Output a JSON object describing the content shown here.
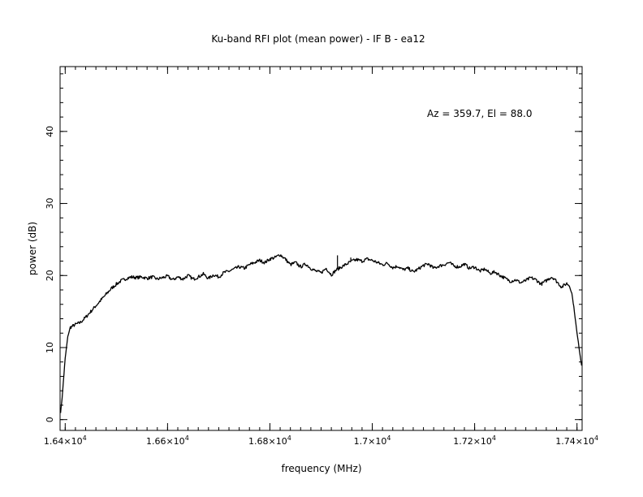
{
  "chart_data": {
    "type": "line",
    "title": "Ku-band RFI plot (mean power) - IF B - ea12",
    "xlabel": "frequency (MHz)",
    "ylabel": "power (dB)",
    "annotation": "Az = 359.7, El = 88.0",
    "xlim": [
      16390,
      17410
    ],
    "ylim": [
      -1.5,
      49
    ],
    "x_ticks": [
      {
        "value": 16400,
        "mantissa": "1.64",
        "exp": "4"
      },
      {
        "value": 16600,
        "mantissa": "1.66",
        "exp": "4"
      },
      {
        "value": 16800,
        "mantissa": "1.68",
        "exp": "4"
      },
      {
        "value": 17000,
        "mantissa": "1.7",
        "exp": "4"
      },
      {
        "value": 17200,
        "mantissa": "1.72",
        "exp": "4"
      },
      {
        "value": 17400,
        "mantissa": "1.74",
        "exp": "4"
      }
    ],
    "y_ticks": [
      {
        "value": 0,
        "label": "0"
      },
      {
        "value": 10,
        "label": "10"
      },
      {
        "value": 20,
        "label": "20"
      },
      {
        "value": 30,
        "label": "30"
      },
      {
        "value": 40,
        "label": "40"
      }
    ],
    "x_minor_step": 20,
    "y_minor_step": 2,
    "grid": false,
    "line_color": "#000000",
    "series": [
      {
        "x": [
          16391,
          16394,
          16400,
          16405,
          16410,
          16420,
          16430,
          16440,
          16450,
          16460,
          16470,
          16480,
          16490,
          16500,
          16510,
          16520,
          16530,
          16540,
          16550,
          16560,
          16570,
          16580,
          16590,
          16600,
          16610,
          16620,
          16630,
          16640,
          16650,
          16660,
          16670,
          16680,
          16690,
          16700,
          16710,
          16720,
          16730,
          16740,
          16750,
          16760,
          16770,
          16780,
          16790,
          16800,
          16810,
          16820,
          16825,
          16830,
          16840,
          16850,
          16860,
          16870,
          16880,
          16890,
          16900,
          16910,
          16920,
          16930,
          16940,
          16950,
          16960,
          16970,
          16980,
          16990,
          17000,
          17010,
          17020,
          17030,
          17040,
          17050,
          17060,
          17070,
          17080,
          17090,
          17100,
          17110,
          17120,
          17130,
          17140,
          17150,
          17160,
          17170,
          17180,
          17190,
          17200,
          17210,
          17220,
          17230,
          17240,
          17250,
          17260,
          17270,
          17280,
          17290,
          17300,
          17310,
          17320,
          17330,
          17340,
          17350,
          17355,
          17360,
          17370,
          17380,
          17385,
          17390,
          17395,
          17400,
          17405,
          17409
        ],
        "y": [
          1.0,
          3.0,
          8.5,
          11.5,
          12.8,
          13.2,
          13.5,
          14.2,
          15.0,
          15.8,
          16.6,
          17.4,
          18.2,
          18.8,
          19.3,
          19.6,
          19.8,
          19.7,
          19.8,
          19.6,
          19.8,
          19.5,
          19.7,
          19.9,
          19.4,
          19.8,
          19.5,
          20.0,
          19.5,
          19.8,
          20.2,
          19.6,
          20.1,
          19.8,
          20.4,
          20.6,
          20.9,
          21.2,
          21.0,
          21.5,
          21.8,
          22.1,
          21.8,
          22.3,
          22.5,
          22.9,
          22.6,
          22.3,
          21.5,
          21.8,
          21.2,
          21.6,
          21.0,
          20.6,
          20.4,
          21.0,
          20.1,
          20.8,
          21.2,
          21.6,
          22.0,
          22.2,
          22.0,
          22.3,
          22.1,
          21.8,
          21.5,
          21.7,
          21.1,
          21.3,
          20.8,
          21.0,
          20.5,
          20.9,
          21.4,
          21.6,
          21.0,
          21.3,
          21.5,
          21.8,
          21.3,
          21.2,
          21.6,
          21.0,
          21.2,
          20.6,
          20.9,
          20.3,
          20.5,
          20.0,
          19.6,
          19.2,
          19.4,
          19.0,
          19.3,
          19.7,
          19.4,
          18.8,
          19.3,
          19.8,
          19.6,
          19.2,
          18.4,
          18.9,
          18.6,
          17.5,
          15.0,
          12.0,
          9.5,
          7.5
        ],
        "spikes": [
          {
            "x": 16515,
            "y": 19.4
          },
          {
            "x": 16932,
            "y": 22.8
          },
          {
            "x": 16958,
            "y": 22.5
          }
        ]
      }
    ]
  }
}
